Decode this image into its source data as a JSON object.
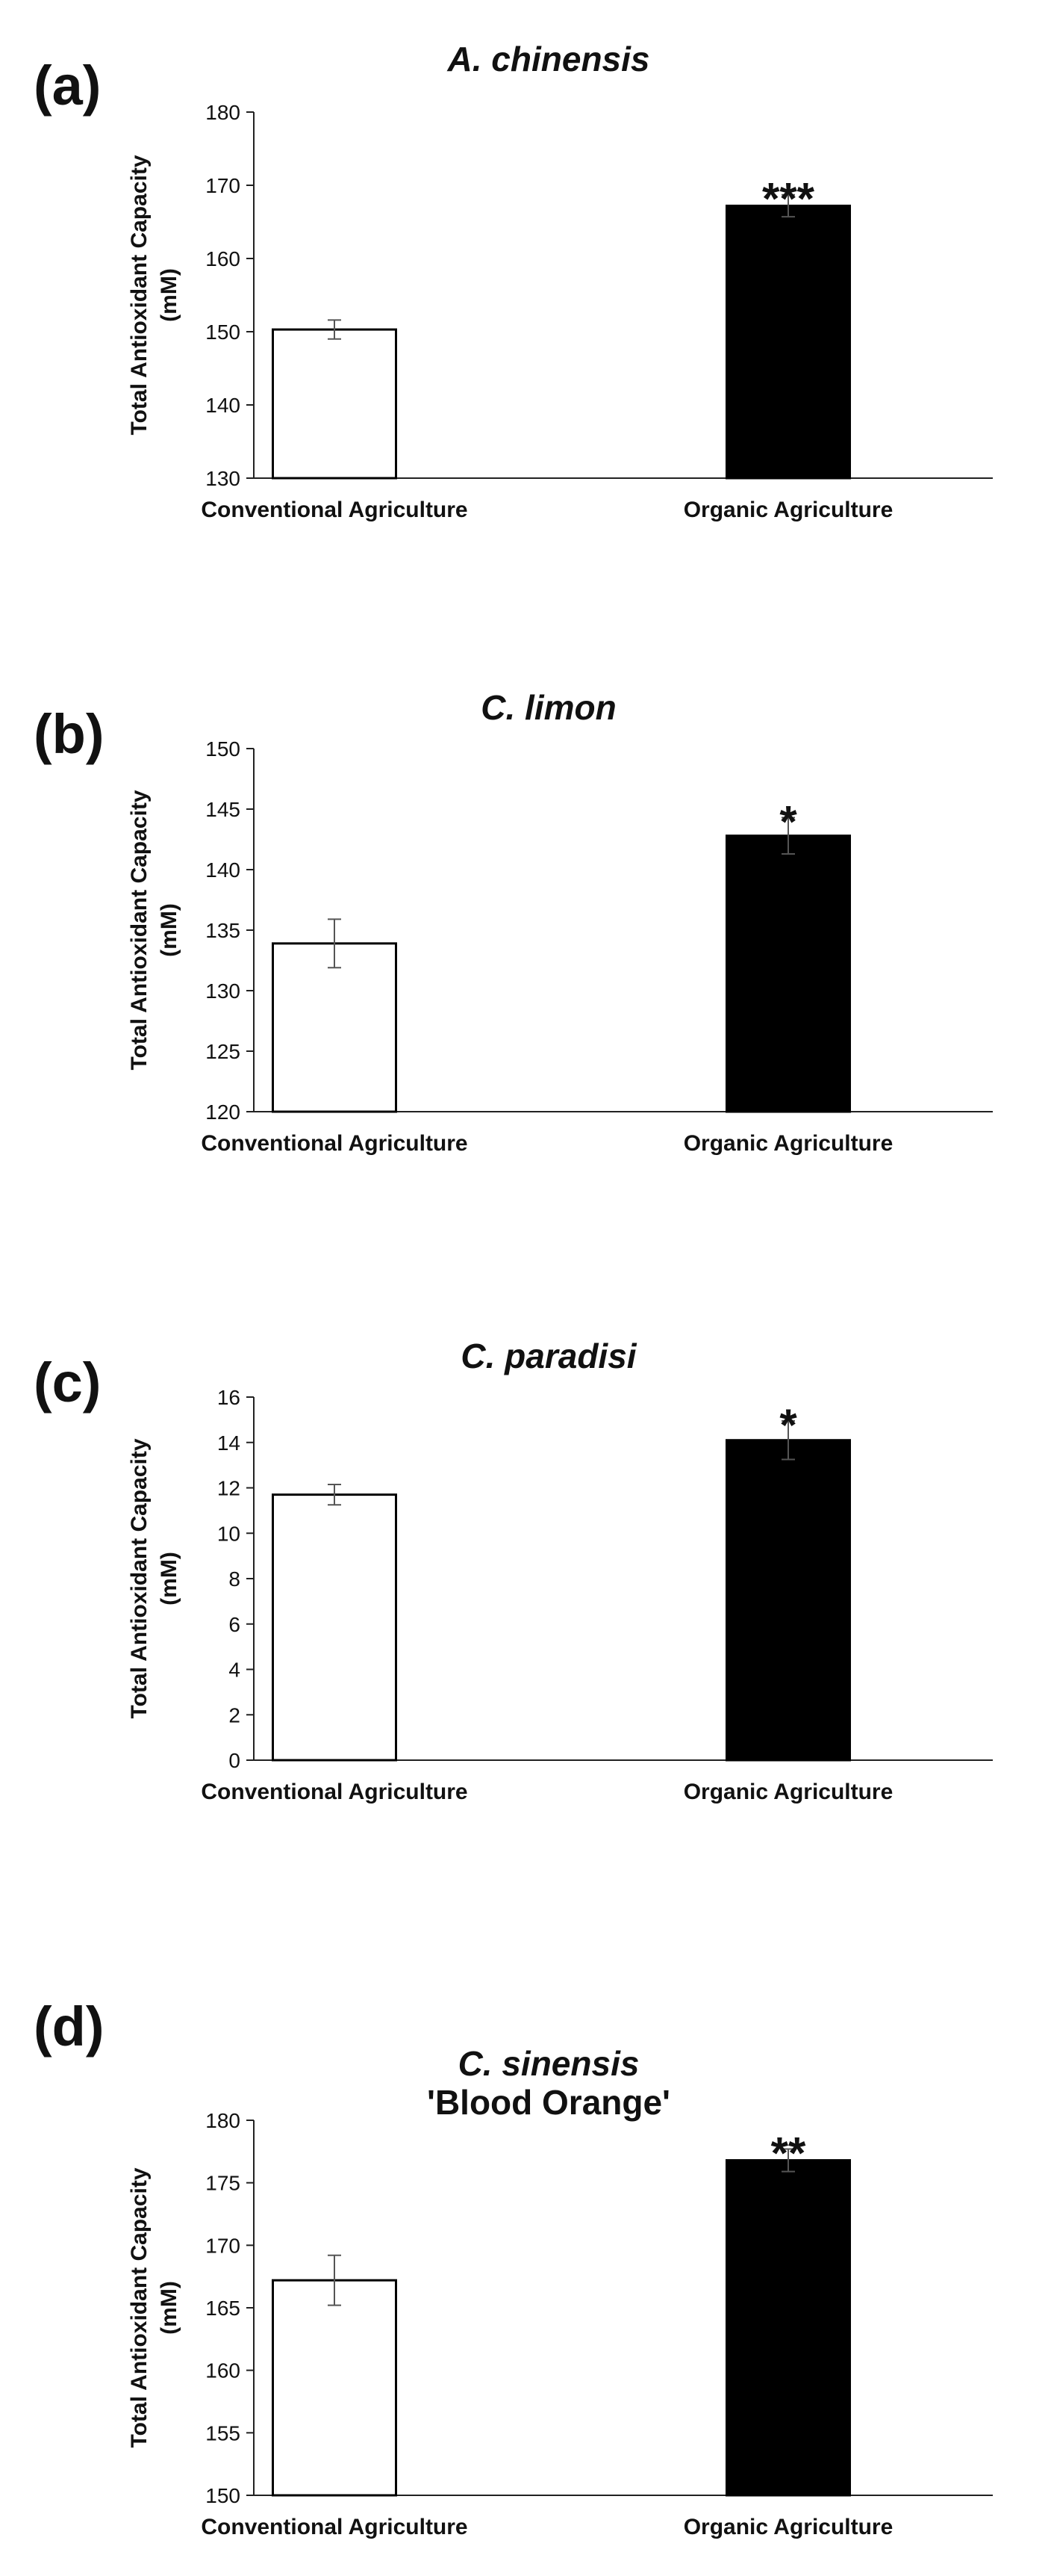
{
  "chart_data": [
    {
      "type": "bar",
      "panel": "(a)",
      "title": "A. chinensis",
      "subtitle": "",
      "ylabel": "Total Antioxidant Capacity",
      "ylabel_unit": "(mM)",
      "ylim": [
        130,
        180
      ],
      "yticks": [
        130,
        140,
        150,
        160,
        170,
        180
      ],
      "categories": [
        "Conventional Agriculture",
        "Organic Agriculture"
      ],
      "values": [
        150.3,
        167.2
      ],
      "errors": [
        1.3,
        1.5
      ],
      "significance": [
        "",
        "***"
      ],
      "bar_colors": [
        "#ffffff",
        "#000000"
      ]
    },
    {
      "type": "bar",
      "panel": "(b)",
      "title": "C. limon",
      "subtitle": "",
      "ylabel": "Total Antioxidant Capacity",
      "ylabel_unit": "(mM)",
      "ylim": [
        120,
        150
      ],
      "yticks": [
        120,
        125,
        130,
        135,
        140,
        145,
        150
      ],
      "categories": [
        "Conventional Agriculture",
        "Organic Agriculture"
      ],
      "values": [
        133.9,
        142.8
      ],
      "errors": [
        2.0,
        1.5
      ],
      "significance": [
        "",
        "*"
      ],
      "bar_colors": [
        "#ffffff",
        "#000000"
      ]
    },
    {
      "type": "bar",
      "panel": "(c)",
      "title": "C. paradisi",
      "subtitle": "",
      "ylabel": "Total Antioxidant Capacity",
      "ylabel_unit": "(mM)",
      "ylim": [
        0,
        16
      ],
      "yticks": [
        0,
        2,
        4,
        6,
        8,
        10,
        12,
        14,
        16
      ],
      "categories": [
        "Conventional Agriculture",
        "Organic Agriculture"
      ],
      "values": [
        11.7,
        14.1
      ],
      "errors": [
        0.45,
        0.85
      ],
      "significance": [
        "",
        "*"
      ],
      "bar_colors": [
        "#ffffff",
        "#000000"
      ]
    },
    {
      "type": "bar",
      "panel": "(d)",
      "title": "C. sinensis",
      "subtitle": "'Blood Orange'",
      "ylabel": "Total Antioxidant Capacity",
      "ylabel_unit": "(mM)",
      "ylim": [
        150,
        180
      ],
      "yticks": [
        150,
        155,
        160,
        165,
        170,
        175,
        180
      ],
      "categories": [
        "Conventional Agriculture",
        "Organic Agriculture"
      ],
      "values": [
        167.2,
        176.8
      ],
      "errors": [
        2.0,
        0.9
      ],
      "significance": [
        "",
        "**"
      ],
      "bar_colors": [
        "#ffffff",
        "#000000"
      ]
    }
  ]
}
